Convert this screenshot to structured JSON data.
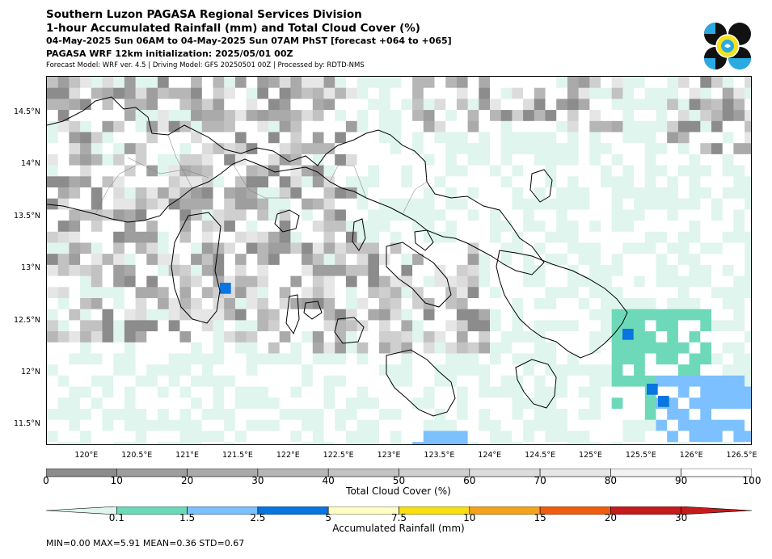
{
  "header": {
    "line1": "Southern Luzon PAGASA Regional Services Division",
    "line2": "1-hour Accumulated Rainfall (mm) and Total Cloud Cover (%)",
    "line3": "04-May-2025 Sun 06AM to 04-May-2025 Sun 07AM PhST [forecast +064 to +065]",
    "line4": "PAGASA WRF 12km initialization: 2025/05/01 00Z",
    "line5": "Forecast Model: WRF ver. 4.5 | Driving Model: GFS 20250501 00Z | Processed by: RDTD-NMS"
  },
  "logo": {
    "icon": "pagasa-logo-icon",
    "colors": [
      "#111111",
      "#29abe2",
      "#f7e21b"
    ]
  },
  "map": {
    "lon_range": [
      119.6,
      126.6
    ],
    "lat_range": [
      11.3,
      14.85
    ],
    "lat_ticks": [
      "14.5°N",
      "14°N",
      "13.5°N",
      "13°N",
      "12.5°N",
      "12°N",
      "11.5°N"
    ],
    "lat_values": [
      14.5,
      14,
      13.5,
      13,
      12.5,
      12,
      11.5
    ],
    "lon_ticks": [
      "120°E",
      "120.5°E",
      "121°E",
      "121.5°E",
      "122°E",
      "122.5°E",
      "123°E",
      "123.5°E",
      "124°E",
      "124.5°E",
      "125°E",
      "125.5°E",
      "126°E",
      "126.5°E"
    ],
    "lon_values": [
      120,
      120.5,
      121,
      121.5,
      122,
      122.5,
      123,
      123.5,
      124,
      124.5,
      125,
      125.5,
      126,
      126.5
    ]
  },
  "cloud_colorbar": {
    "label": "Total Cloud Cover (%)",
    "ticks": [
      "0",
      "10",
      "20",
      "30",
      "40",
      "50",
      "60",
      "70",
      "80",
      "90",
      "100"
    ],
    "colors": [
      "#8c8c8c",
      "#9e9e9e",
      "#aaaaaa",
      "#b6b6b6",
      "#c2c2c2",
      "#cfcfcf",
      "#dcdcdc",
      "#e6e6e6",
      "#f2f2f2",
      "#ffffff"
    ]
  },
  "rain_colorbar": {
    "label": "Accumulated Rainfall (mm)",
    "ticks": [
      "0.1",
      "1.5",
      "2.5",
      "5",
      "7.5",
      "10",
      "15",
      "20",
      "30"
    ],
    "colors": [
      "#dff5ee",
      "#6ed9b8",
      "#7cc0ff",
      "#0875e0",
      "#fffec5",
      "#f8df10",
      "#f6a31c",
      "#f05d0f",
      "#c51b1b",
      "#c51b1b"
    ]
  },
  "stats": "MIN=0.00   MAX=5.91   MEAN=0.36   STD=0.67"
}
